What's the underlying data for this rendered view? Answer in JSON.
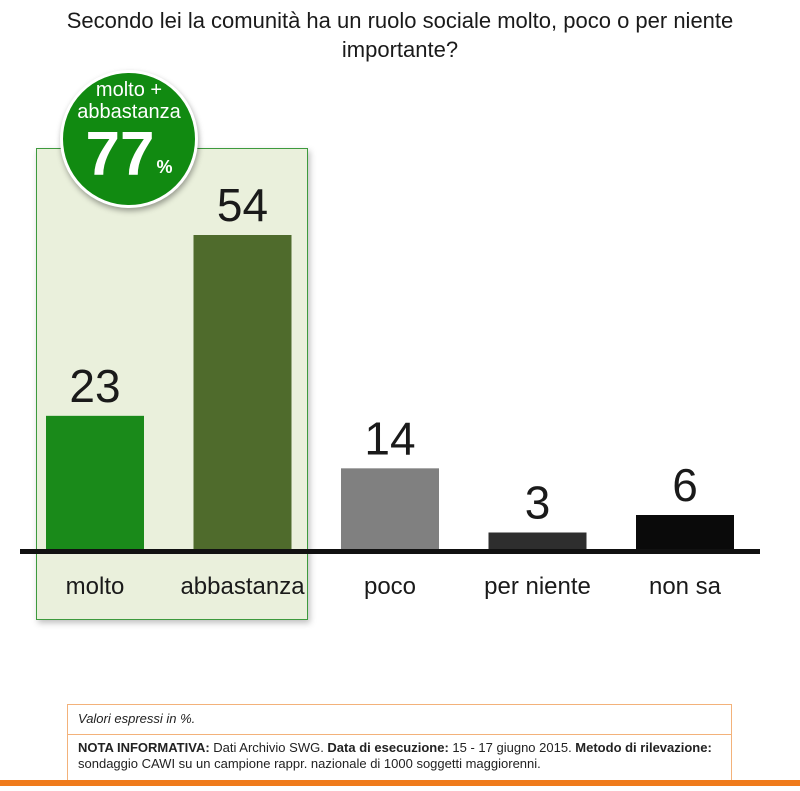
{
  "title": "Secondo lei la comunità ha un ruolo sociale molto, poco o per niente importante?",
  "badge": {
    "label": "molto + abbastanza",
    "value": "77",
    "unit": "%"
  },
  "chart_data": {
    "type": "bar",
    "categories": [
      "molto",
      "abbastanza",
      "poco",
      "per niente",
      "non sa"
    ],
    "values": [
      23,
      54,
      14,
      3,
      6
    ],
    "colors": [
      "#1a8a1a",
      "#4f6b2c",
      "#808080",
      "#2e2e2e",
      "#0a0a0a"
    ],
    "ylim": [
      0,
      54
    ],
    "highlight_categories": [
      "molto",
      "abbastanza"
    ]
  },
  "notes": {
    "values": "Valori espressi in %.",
    "nota_label": "NOTA INFORMATIVA:",
    "nota_text": " Dati Archivio SWG. ",
    "data_label": "Data di esecuzione:",
    "data_text": " 15 - 17 giugno 2015. ",
    "metodo_label": "Metodo di rilevazione:",
    "metodo_text": " sondaggio CAWI su un campione rappr. nazionale di 1000 soggetti maggiorenni."
  },
  "colors": {
    "accent_green": "#118a11",
    "highlight_bg": "#eaf0dc",
    "orange": "#f07b1c"
  }
}
